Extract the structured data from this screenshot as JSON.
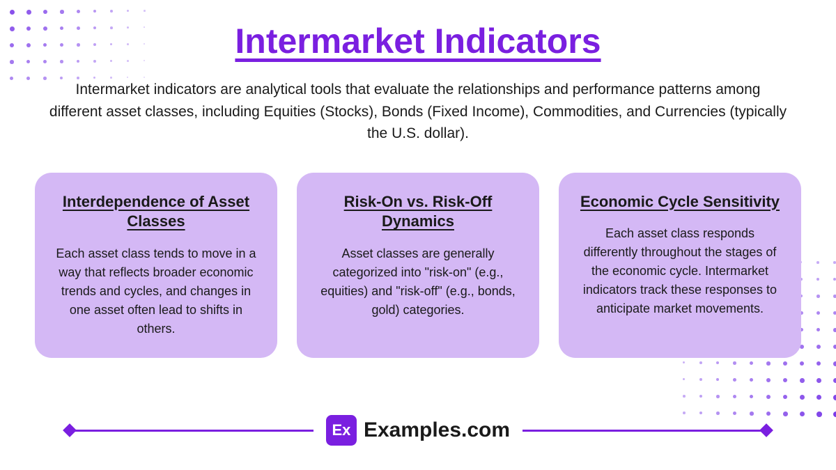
{
  "title": "Intermarket Indicators",
  "description": "Intermarket indicators are analytical tools that evaluate the relationships and performance patterns among different asset classes, including Equities (Stocks), Bonds (Fixed Income), Commodities, and Currencies (typically the U.S. dollar).",
  "cards": [
    {
      "title": "Interdependence of Asset Classes",
      "text": "Each asset class tends to move in a way that reflects broader economic trends and cycles, and changes in one asset often lead to shifts in others."
    },
    {
      "title": "Risk-On vs. Risk-Off Dynamics",
      "text": "Asset classes are generally categorized into \"risk-on\" (e.g., equities) and \"risk-off\" (e.g., bonds, gold) categories."
    },
    {
      "title": "Economic Cycle Sensitivity",
      "text": "Each asset class responds differently throughout the stages of the economic cycle. Intermarket indicators track these responses to anticipate market movements."
    }
  ],
  "brand": {
    "badge": "Ex",
    "name": "Examples.com"
  },
  "colors": {
    "accent": "#7a1fe0",
    "dot": "#7a3be8",
    "card_bg": "#d4b8f5",
    "text": "#1a1a1a",
    "bg": "#ffffff"
  },
  "decorations": {
    "dot_pattern": {
      "spacing": 24,
      "tl_rows": 6,
      "tl_cols": 10,
      "br_rows": 10,
      "br_cols": 10,
      "min_size": 2,
      "max_size": 8
    }
  }
}
